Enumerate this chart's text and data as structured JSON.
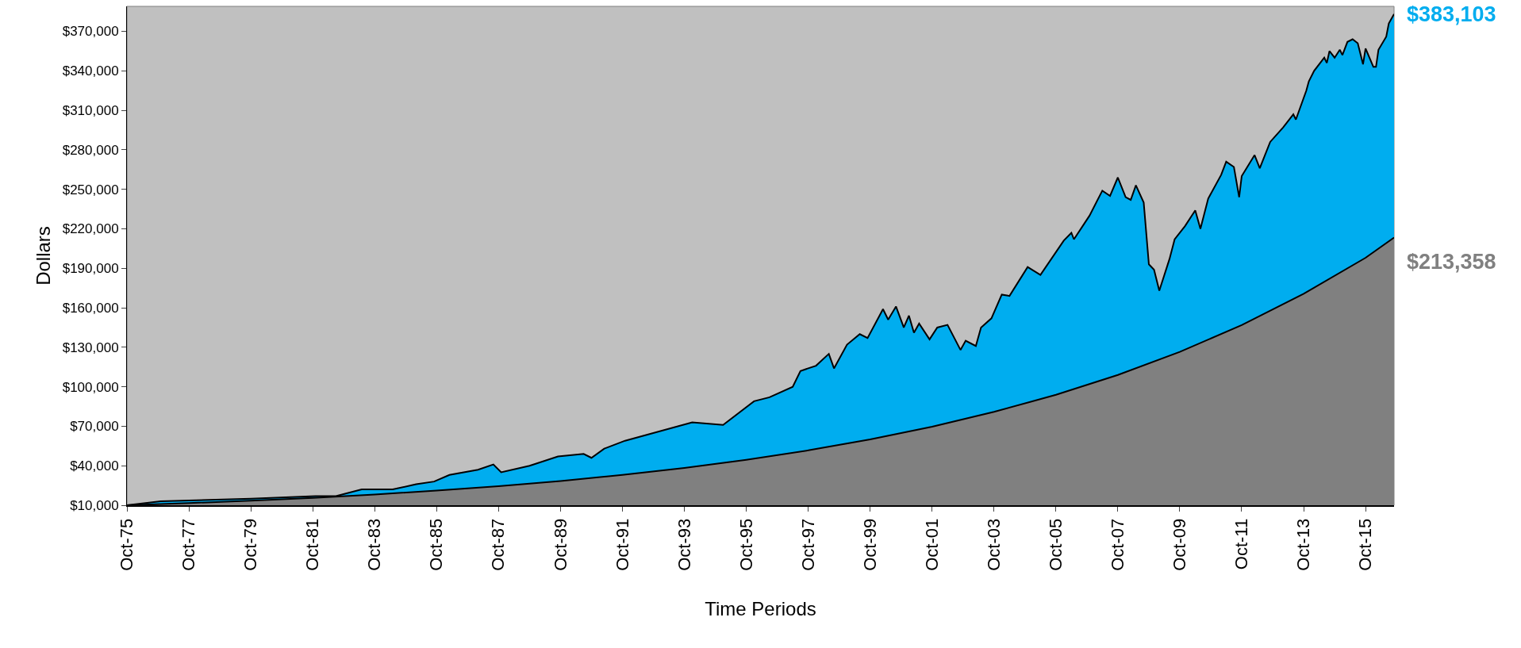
{
  "chart_data": {
    "type": "area",
    "xlabel": "Time Periods",
    "ylabel": "Dollars",
    "xlim": [
      "1975-10",
      "2016-09"
    ],
    "ylim": [
      10000,
      389000
    ],
    "xticks": [
      {
        "value": "1975-10",
        "label": "Oct-75"
      },
      {
        "value": "1977-10",
        "label": "Oct-77"
      },
      {
        "value": "1979-10",
        "label": "Oct-79"
      },
      {
        "value": "1981-10",
        "label": "Oct-81"
      },
      {
        "value": "1983-10",
        "label": "Oct-83"
      },
      {
        "value": "1985-10",
        "label": "Oct-85"
      },
      {
        "value": "1987-10",
        "label": "Oct-87"
      },
      {
        "value": "1989-10",
        "label": "Oct-89"
      },
      {
        "value": "1991-10",
        "label": "Oct-91"
      },
      {
        "value": "1993-10",
        "label": "Oct-93"
      },
      {
        "value": "1995-10",
        "label": "Oct-95"
      },
      {
        "value": "1997-10",
        "label": "Oct-97"
      },
      {
        "value": "1999-10",
        "label": "Oct-99"
      },
      {
        "value": "2001-10",
        "label": "Oct-01"
      },
      {
        "value": "2003-10",
        "label": "Oct-03"
      },
      {
        "value": "2005-10",
        "label": "Oct-05"
      },
      {
        "value": "2007-10",
        "label": "Oct-07"
      },
      {
        "value": "2009-10",
        "label": "Oct-09"
      },
      {
        "value": "2011-10",
        "label": "Oct-11"
      },
      {
        "value": "2013-10",
        "label": "Oct-13"
      },
      {
        "value": "2015-10",
        "label": "Oct-15"
      }
    ],
    "yticks": [
      {
        "value": 10000,
        "label": "$10,000"
      },
      {
        "value": 40000,
        "label": "$40,000"
      },
      {
        "value": 70000,
        "label": "$70,000"
      },
      {
        "value": 100000,
        "label": "$100,000"
      },
      {
        "value": 130000,
        "label": "$130,000"
      },
      {
        "value": 160000,
        "label": "$160,000"
      },
      {
        "value": 190000,
        "label": "$190,000"
      },
      {
        "value": 220000,
        "label": "$220,000"
      },
      {
        "value": 250000,
        "label": "$250,000"
      },
      {
        "value": 280000,
        "label": "$280,000"
      },
      {
        "value": 310000,
        "label": "$310,000"
      },
      {
        "value": 340000,
        "label": "$340,000"
      },
      {
        "value": 370000,
        "label": "$370,000"
      }
    ],
    "grid": false,
    "legend": false,
    "series": [
      {
        "color": "#00adef",
        "x": [
          "1975-10",
          "1976-11",
          "1979-10",
          "1981-11",
          "1982-07",
          "1983-05",
          "1984-05",
          "1985-02",
          "1985-09",
          "1986-03",
          "1987-02",
          "1987-08",
          "1987-11",
          "1988-10",
          "1989-09",
          "1990-07",
          "1990-10",
          "1991-03",
          "1991-11",
          "1994-01",
          "1995-01",
          "1996-01",
          "1996-07",
          "1997-04",
          "1997-07",
          "1998-01",
          "1998-06",
          "1998-08",
          "1999-01",
          "1999-06",
          "1999-09",
          "2000-03",
          "2000-05",
          "2000-08",
          "2000-11",
          "2001-01",
          "2001-03",
          "2001-05",
          "2001-09",
          "2001-12",
          "2002-04",
          "2002-09",
          "2002-11",
          "2003-03",
          "2003-05",
          "2003-09",
          "2004-01",
          "2004-04",
          "2004-11",
          "2005-04",
          "2006-01",
          "2006-04",
          "2006-05",
          "2006-11",
          "2007-04",
          "2007-07",
          "2007-10",
          "2008-01",
          "2008-03",
          "2008-05",
          "2008-08",
          "2008-10",
          "2008-12",
          "2009-02",
          "2009-06",
          "2009-08",
          "2009-12",
          "2010-04",
          "2010-06",
          "2010-09",
          "2011-02",
          "2011-04",
          "2011-07",
          "2011-09",
          "2011-10",
          "2012-03",
          "2012-05",
          "2012-09",
          "2013-02",
          "2013-06",
          "2013-07",
          "2013-11",
          "2013-12",
          "2014-02",
          "2014-06",
          "2014-07",
          "2014-08",
          "2014-10",
          "2014-12",
          "2015-01",
          "2015-03",
          "2015-05",
          "2015-07",
          "2015-09",
          "2015-10",
          "2016-01",
          "2016-02",
          "2016-03",
          "2016-06",
          "2016-07",
          "2016-09"
        ],
        "values": [
          10000,
          13000,
          15000,
          17000,
          17000,
          22000,
          22000,
          26000,
          28000,
          33000,
          37000,
          41000,
          35000,
          40000,
          47000,
          49000,
          46000,
          53000,
          59000,
          73000,
          71000,
          89000,
          92000,
          100000,
          112000,
          116000,
          125000,
          114000,
          132000,
          140000,
          137000,
          159000,
          151000,
          161000,
          145000,
          154000,
          141000,
          148000,
          136000,
          145000,
          147000,
          128000,
          135000,
          131000,
          145000,
          152000,
          170000,
          169000,
          191000,
          185000,
          211000,
          217000,
          212000,
          230000,
          249000,
          245000,
          259000,
          244000,
          242000,
          253000,
          240000,
          193000,
          189000,
          173000,
          197000,
          212000,
          222000,
          234000,
          220000,
          243000,
          261000,
          271000,
          267000,
          244000,
          260000,
          276000,
          266000,
          286000,
          297000,
          307000,
          303000,
          325000,
          332000,
          340000,
          350000,
          346000,
          355000,
          350000,
          356000,
          352000,
          362000,
          364000,
          361000,
          345000,
          357000,
          343000,
          343000,
          356000,
          366000,
          376000,
          383103
        ]
      },
      {
        "color": "#808080",
        "x": [
          "1975-10",
          "1977-10",
          "1979-10",
          "1981-10",
          "1983-10",
          "1985-10",
          "1987-10",
          "1989-10",
          "1991-10",
          "1993-10",
          "1995-10",
          "1997-10",
          "1999-10",
          "2001-10",
          "2003-10",
          "2005-10",
          "2007-10",
          "2009-10",
          "2011-10",
          "2013-10",
          "2015-10",
          "2016-09"
        ],
        "values": [
          10000,
          11600,
          13500,
          15600,
          18200,
          21100,
          24500,
          28400,
          33000,
          38300,
          44500,
          51700,
          60000,
          69600,
          80900,
          93900,
          109000,
          126500,
          146900,
          170600,
          198000,
          213358
        ]
      }
    ],
    "annotations": [
      {
        "text": "$383,103",
        "x": "2016-09",
        "y": 383103
      },
      {
        "text": "$213,358",
        "x": "2016-09",
        "y": 213358
      }
    ]
  }
}
